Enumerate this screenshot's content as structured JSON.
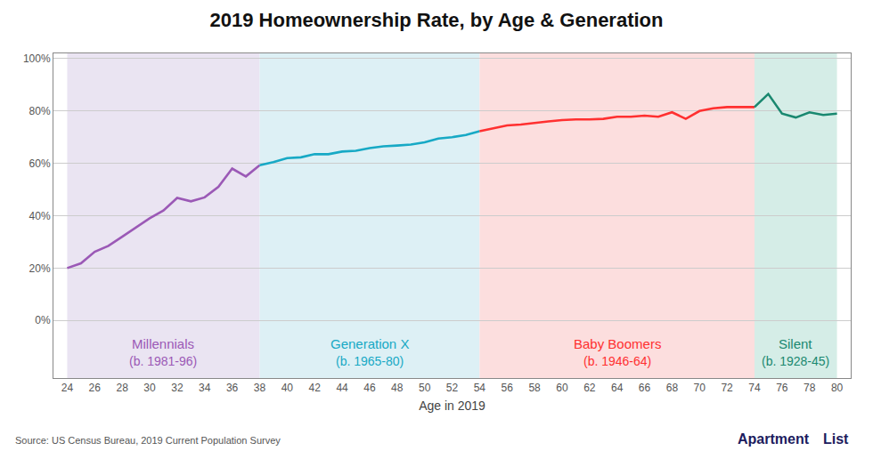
{
  "chart_data": {
    "type": "line",
    "title": "2019 Homeownership Rate, by Age & Generation",
    "x_label": "Age in 2019",
    "source": "Source: US Census Bureau, 2019 Current Population Survey",
    "logo": [
      "Apartment",
      "List"
    ],
    "bands": [
      {
        "start": 24,
        "end": 38,
        "color": "#EAE4F2",
        "label": "Millennials",
        "sublabel": "(b. 1981-96)",
        "label_color": "#9B59B6"
      },
      {
        "start": 38,
        "end": 54,
        "color": "#DDF0F5",
        "label": "Generation X",
        "sublabel": "(b. 1965-80)",
        "label_color": "#17A9C5"
      },
      {
        "start": 54,
        "end": 74,
        "color": "#FCDEDE",
        "label": "Baby Boomers",
        "sublabel": "(b. 1946-64)",
        "label_color": "#FF3030"
      },
      {
        "start": 74,
        "end": 80,
        "color": "#D5EDE7",
        "label": "Silent",
        "sublabel": "(b. 1928-45)",
        "label_color": "#1A8870"
      }
    ],
    "series": [
      {
        "color": "#9B59B6",
        "x": [
          24,
          25,
          26,
          27,
          28,
          29,
          30,
          31,
          32,
          33,
          34,
          35,
          36,
          37,
          38
        ],
        "values": [
          0.2,
          0.218,
          0.262,
          0.285,
          0.32,
          0.355,
          0.39,
          0.42,
          0.468,
          0.455,
          0.47,
          0.51,
          0.58,
          0.55,
          0.593
        ]
      },
      {
        "color": "#17A9C5",
        "x": [
          38,
          39,
          40,
          41,
          42,
          43,
          44,
          45,
          46,
          47,
          48,
          49,
          50,
          51,
          52,
          53,
          54
        ],
        "values": [
          0.593,
          0.605,
          0.62,
          0.623,
          0.635,
          0.635,
          0.645,
          0.648,
          0.658,
          0.665,
          0.668,
          0.672,
          0.68,
          0.695,
          0.7,
          0.708,
          0.723
        ]
      },
      {
        "color": "#FF3030",
        "x": [
          54,
          55,
          56,
          57,
          58,
          59,
          60,
          61,
          62,
          63,
          64,
          65,
          66,
          67,
          68,
          69,
          70,
          71,
          72,
          73,
          74
        ],
        "values": [
          0.723,
          0.735,
          0.745,
          0.748,
          0.755,
          0.76,
          0.765,
          0.768,
          0.768,
          0.77,
          0.778,
          0.778,
          0.782,
          0.778,
          0.795,
          0.77,
          0.8,
          0.81,
          0.815,
          0.815,
          0.815
        ]
      },
      {
        "color": "#1A8870",
        "x": [
          74,
          75,
          76,
          77,
          78,
          79,
          80
        ],
        "values": [
          0.815,
          0.865,
          0.79,
          0.775,
          0.795,
          0.785,
          0.79
        ]
      }
    ],
    "xlim": [
      23,
      81
    ],
    "xticks": [
      24,
      26,
      28,
      30,
      32,
      34,
      36,
      38,
      40,
      42,
      44,
      46,
      48,
      50,
      52,
      54,
      56,
      58,
      60,
      62,
      64,
      66,
      68,
      70,
      72,
      74,
      76,
      78,
      80
    ],
    "ylim": [
      -0.22,
      1.02
    ],
    "yticks": [
      {
        "value": 0.0,
        "label": "0%"
      },
      {
        "value": 0.2,
        "label": "20%"
      },
      {
        "value": 0.4,
        "label": "40%"
      },
      {
        "value": 0.6,
        "label": "60%"
      },
      {
        "value": 0.8,
        "label": "80%"
      },
      {
        "value": 1.0,
        "label": "100%"
      }
    ],
    "grid": "y"
  }
}
